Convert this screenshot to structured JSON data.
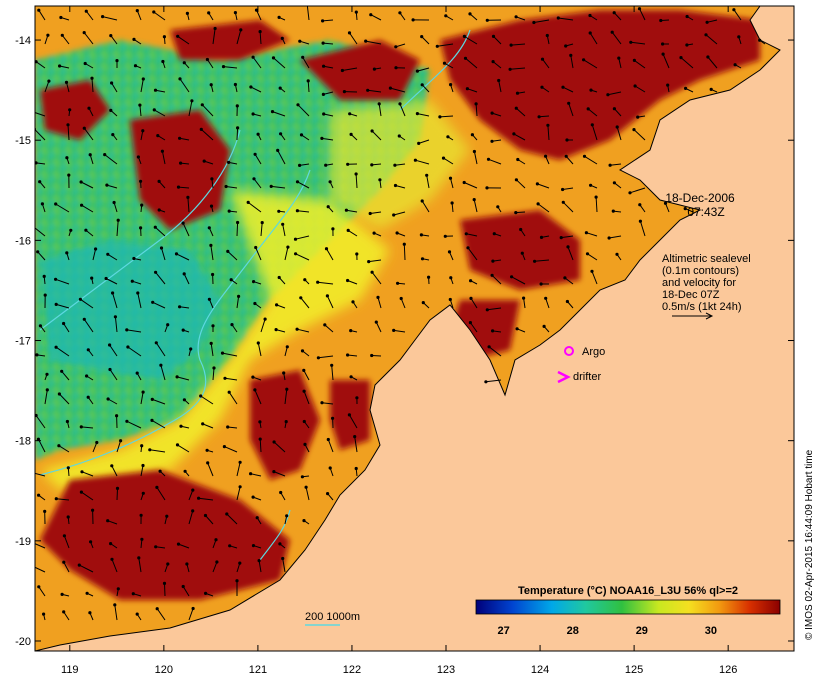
{
  "map": {
    "date": "18-Dec-2006",
    "time": "07:43Z",
    "altimetry_note": [
      "Altimetric sealevel",
      "(0.1m contours)",
      "and velocity for",
      "18-Dec 07Z",
      "0.5m/s (1kt 24h)"
    ],
    "legend_argo": "Argo",
    "legend_drifter": "drifter",
    "bathy_scale": "200  1000m",
    "credit": "© IMOS 02-Apr-2015 16:44:09 Hobart time",
    "x_ticks": [
      "119",
      "120",
      "121",
      "122",
      "123",
      "124",
      "125",
      "126"
    ],
    "y_ticks": [
      "-14",
      "-15",
      "-16",
      "-17",
      "-18",
      "-19",
      "-20"
    ],
    "lon_range": [
      118.63,
      126.7
    ],
    "lat_range": [
      -20.1,
      -13.66
    ],
    "colorbar": {
      "title": "Temperature (°C) NOAA16_L3U 56% ql>=2",
      "ticks": [
        "27",
        "28",
        "29",
        "30"
      ],
      "range": [
        26.6,
        31.0
      ]
    },
    "colors": {
      "land": "#fbc89a",
      "sea_warm": "#f0a020",
      "hot": "#a01010",
      "cool": "#2ec060",
      "cyan": "#22c8c8",
      "yellow": "#f2f02a",
      "magenta": "#ff00ff",
      "contour": "#5ed8e0"
    }
  }
}
